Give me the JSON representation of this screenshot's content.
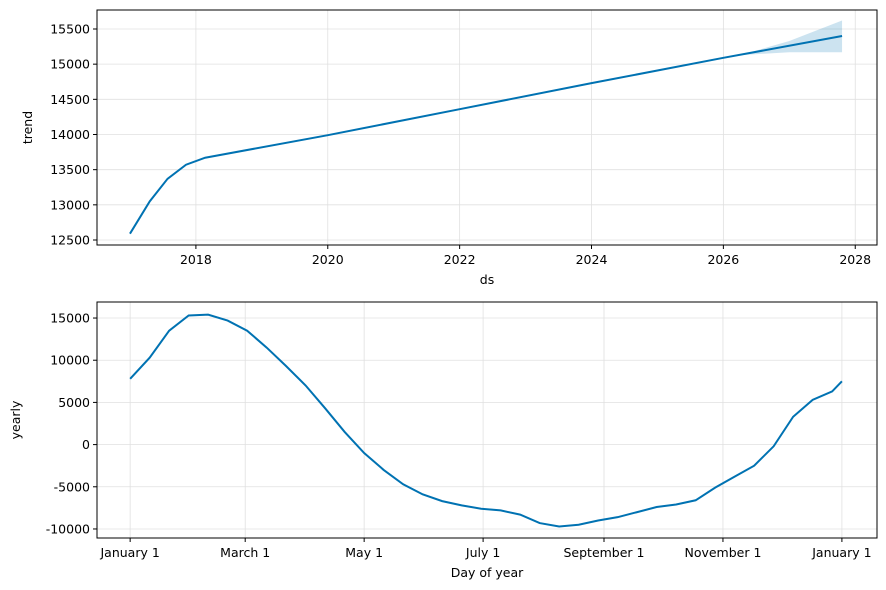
{
  "chart_data": [
    {
      "type": "line",
      "xlabel": "ds",
      "ylabel": "trend",
      "x": [
        2017.0,
        2017.3,
        2017.57,
        2017.85,
        2018.14,
        2020,
        2022,
        2024,
        2026,
        2027.8
      ],
      "series": [
        {
          "color": "#0072B2",
          "values": [
            12590,
            13050,
            13370,
            13570,
            13670,
            13990,
            14360,
            14730,
            15090,
            15400
          ]
        }
      ],
      "band": {
        "color": "#0072B2",
        "x": [
          2026.3,
          2027.0,
          2027.8
        ],
        "lower": [
          15130,
          15170,
          15170
        ],
        "upper": [
          15140,
          15330,
          15620
        ]
      },
      "xlim": [
        2016.5,
        2028.33
      ],
      "ylim": [
        12429,
        15770
      ],
      "xticks": [
        2018,
        2020,
        2022,
        2024,
        2026,
        2028
      ],
      "yticks": [
        12500,
        13000,
        13500,
        14000,
        14500,
        15000,
        15500
      ],
      "grid": true
    },
    {
      "type": "line",
      "xlabel": "Day of year",
      "ylabel": "yearly",
      "x": [
        0,
        10,
        20,
        30,
        40,
        50,
        60,
        70,
        80,
        90,
        100,
        110,
        120,
        130,
        140,
        150,
        160,
        170,
        180,
        190,
        200,
        210,
        220,
        230,
        240,
        250,
        260,
        270,
        280,
        290,
        300,
        310,
        320,
        330,
        340,
        350,
        360,
        365
      ],
      "series": [
        {
          "color": "#0072B2",
          "values": [
            7800,
            10300,
            13500,
            15300,
            15400,
            14700,
            13500,
            11500,
            9300,
            7000,
            4300,
            1500,
            -1000,
            -3000,
            -4700,
            -5900,
            -6700,
            -7200,
            -7600,
            -7800,
            -8300,
            -9300,
            -9700,
            -9500,
            -9000,
            -8600,
            -8000,
            -7400,
            -7100,
            -6600,
            -5100,
            -3800,
            -2500,
            -200,
            3300,
            5300,
            6300,
            7500
          ]
        }
      ],
      "xlim": [
        -17,
        383
      ],
      "ylim": [
        -11070,
        16900
      ],
      "xticks": [
        {
          "value": 0,
          "label": "January 1"
        },
        {
          "value": 59,
          "label": "March 1"
        },
        {
          "value": 120,
          "label": "May 1"
        },
        {
          "value": 181,
          "label": "July 1"
        },
        {
          "value": 243,
          "label": "September 1"
        },
        {
          "value": 304,
          "label": "November 1"
        },
        {
          "value": 365,
          "label": "January 1"
        }
      ],
      "yticks": [
        -10000,
        -5000,
        0,
        5000,
        10000,
        15000
      ],
      "grid": true
    }
  ]
}
